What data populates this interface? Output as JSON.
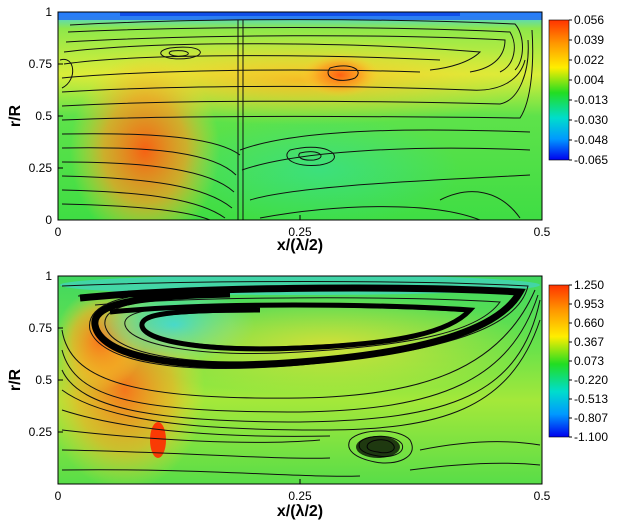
{
  "chart_data": [
    {
      "type": "heatmap",
      "title": "",
      "xlabel": "x/(λ/2)",
      "ylabel": "r/R",
      "xlim": [
        0,
        0.5
      ],
      "ylim": [
        0,
        1
      ],
      "x_ticks": [
        "0",
        "0.25",
        "0.5"
      ],
      "y_ticks": [
        "0",
        "0.25",
        "0.5",
        "0.75",
        "1"
      ],
      "colorbar": {
        "range": [
          -0.065,
          0.056
        ],
        "ticks": [
          "0.056",
          "0.039",
          "0.022",
          "0.004",
          "-0.013",
          "-0.030",
          "-0.048",
          "-0.065"
        ],
        "colors": [
          "#ff3300",
          "#ff9900",
          "#ffee00",
          "#22dd22",
          "#00ddcc",
          "#0099ff",
          "#0000ee"
        ]
      },
      "features": {
        "streamlines": true,
        "vortices": [
          {
            "x": 0.12,
            "y": 0.8
          },
          {
            "x": 0.26,
            "y": 0.32
          },
          {
            "x": 0.3,
            "y": 0.73
          }
        ]
      }
    },
    {
      "type": "heatmap",
      "title": "",
      "xlabel": "x/(λ/2)",
      "ylabel": "r/R",
      "xlim": [
        0,
        0.5
      ],
      "ylim": [
        0,
        1
      ],
      "x_ticks": [
        "0",
        "0.25",
        "0.5"
      ],
      "y_ticks": [
        "0.25",
        "0.5",
        "0.75",
        "1"
      ],
      "colorbar": {
        "range": [
          -1.1,
          1.25
        ],
        "ticks": [
          "1.250",
          "0.953",
          "0.660",
          "0.367",
          "0.073",
          "-0.220",
          "-0.513",
          "-0.807",
          "-1.100"
        ],
        "colors": [
          "#ff3300",
          "#ff9900",
          "#ffee00",
          "#22dd22",
          "#00ddcc",
          "#0099ff",
          "#0000ee"
        ]
      },
      "features": {
        "streamlines": true,
        "vortices": [
          {
            "x": 0.16,
            "y": 0.75
          },
          {
            "x": 0.33,
            "y": 0.18
          }
        ]
      }
    }
  ]
}
